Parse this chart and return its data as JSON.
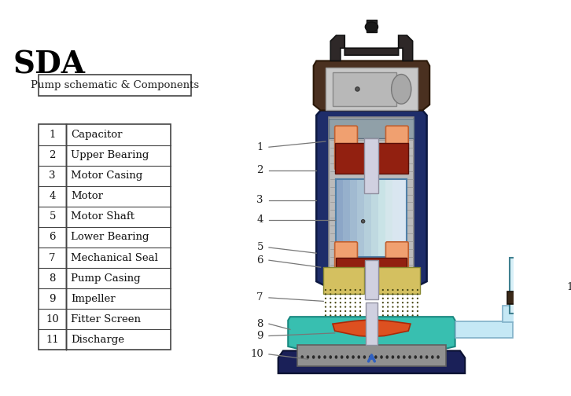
{
  "title": "SDA",
  "subtitle": "Pump schematic & Components",
  "components": [
    [
      1,
      "Capacitor"
    ],
    [
      2,
      "Upper Bearing"
    ],
    [
      3,
      "Motor Casing"
    ],
    [
      4,
      "Motor"
    ],
    [
      5,
      "Motor Shaft"
    ],
    [
      6,
      "Lower Bearing"
    ],
    [
      7,
      "Mechanical Seal"
    ],
    [
      8,
      "Pump Casing"
    ],
    [
      9,
      "Impeller"
    ],
    [
      10,
      "Fitter Screen"
    ],
    [
      11,
      "Discharge"
    ]
  ],
  "bg_color": "#ffffff",
  "title_color": "#000000",
  "label_color": "#777777"
}
